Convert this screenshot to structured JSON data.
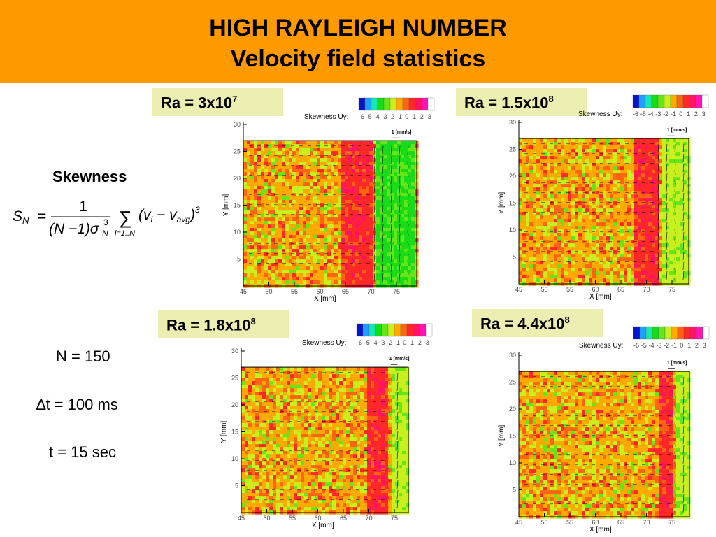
{
  "title": {
    "line1": "HIGH RAYLEIGH NUMBER",
    "line2": "Velocity field statistics"
  },
  "left": {
    "heading": "Skewness",
    "n": "N = 150",
    "dt": "∆t = 100 ms",
    "t": "t = 15 sec",
    "formula": {
      "lhs": "S",
      "lhs_sub": "N",
      "eq": "=",
      "num": "1",
      "den": "(N −1)σ",
      "den_sup": "3",
      "den_sub": "N",
      "sum": "∑",
      "sum_sub": "i=1..N",
      "body": "(v",
      "body_sub_i": "i",
      "minus": " − v",
      "body_sub_avg": "avg",
      "close": ")",
      "power": "3"
    }
  },
  "colors": {
    "banner": "#ff9900",
    "label_bg": "#ecedb0"
  },
  "colorbar": {
    "title": "Skewness Uy:",
    "ticks": [
      "-6",
      "-5",
      "-4",
      "-3",
      "-2",
      "-1",
      "0",
      "1",
      "2",
      "3"
    ],
    "swatches": [
      "#0a14c8",
      "#1fa0ff",
      "#19e6b4",
      "#19dc19",
      "#64e619",
      "#c8f01e",
      "#ffaa00",
      "#ff6414",
      "#ff2828",
      "#ff1464",
      "#ff14b4",
      "#ffffff"
    ]
  },
  "axes": {
    "xlabel": "X [mm]",
    "ylabel": "Y [mm]",
    "xticks": [
      "45",
      "50",
      "55",
      "60",
      "65",
      "70",
      "75"
    ],
    "yticks": [
      "5",
      "10",
      "15",
      "20",
      "25",
      "30"
    ],
    "scale_label": "1 [mm/s]"
  },
  "panels": [
    {
      "label": "Ra = 3x10",
      "exp": "7",
      "red_band": [
        64,
        70
      ],
      "green_band": [
        71,
        78
      ],
      "seed": 3
    },
    {
      "label": "Ra = 1.5x10",
      "exp": "8",
      "red_band": [
        67,
        72
      ],
      "green_band": [
        72.5,
        78
      ],
      "seed": 7
    },
    {
      "label": "Ra = 1.8x10",
      "exp": "8",
      "red_band": [
        69,
        73.5
      ],
      "green_band": [
        74,
        77.5
      ],
      "seed": 11
    },
    {
      "label": "Ra = 4.4x10",
      "exp": "8",
      "red_band": [
        72,
        75
      ],
      "green_band": [
        75.5,
        78
      ],
      "seed": 17
    }
  ]
}
